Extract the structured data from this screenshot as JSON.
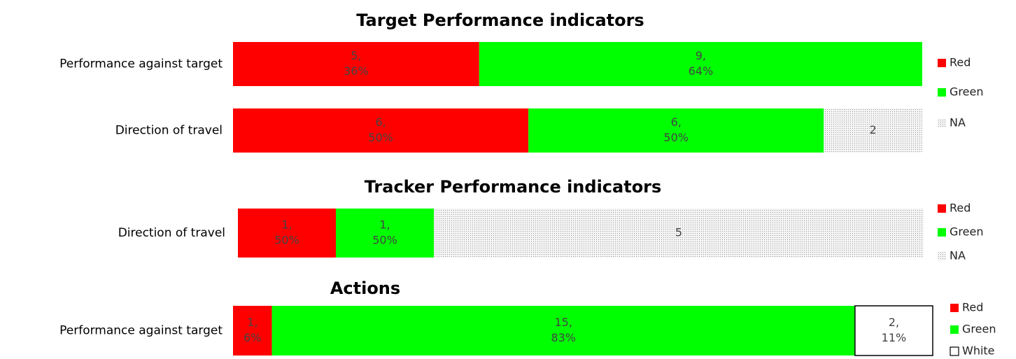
{
  "chart_data": [
    {
      "type": "bar",
      "orientation": "horizontal",
      "stacked": true,
      "title": "Target Performance indicators",
      "categories": [
        "Performance against target",
        "Direction of travel"
      ],
      "series": [
        {
          "name": "Red",
          "color": "#ff0000",
          "values": [
            5,
            6
          ],
          "value_labels": [
            [
              "5,",
              "36%"
            ],
            [
              "6,",
              "50%"
            ]
          ]
        },
        {
          "name": "Green",
          "color": "#00ff00",
          "values": [
            9,
            6
          ],
          "value_labels": [
            [
              "9,",
              "64%"
            ],
            [
              "6,",
              "50%"
            ]
          ]
        },
        {
          "name": "NA",
          "color": "dotted",
          "values": [
            null,
            2
          ],
          "value_labels": [
            null,
            [
              "2"
            ]
          ]
        }
      ],
      "legend": "right"
    },
    {
      "type": "bar",
      "orientation": "horizontal",
      "stacked": true,
      "title": "Tracker Performance indicators",
      "categories": [
        "Direction of travel"
      ],
      "series": [
        {
          "name": "Red",
          "color": "#ff0000",
          "values": [
            1
          ],
          "value_labels": [
            [
              "1,",
              "50%"
            ]
          ]
        },
        {
          "name": "Green",
          "color": "#00ff00",
          "values": [
            1
          ],
          "value_labels": [
            [
              "1,",
              "50%"
            ]
          ]
        },
        {
          "name": "NA",
          "color": "dotted",
          "values": [
            5
          ],
          "value_labels": [
            [
              "5"
            ]
          ]
        }
      ],
      "legend": "right"
    },
    {
      "type": "bar",
      "orientation": "horizontal",
      "stacked": true,
      "title": "Actions",
      "categories": [
        "Performance against target"
      ],
      "series": [
        {
          "name": "Red",
          "color": "#ff0000",
          "values": [
            1
          ],
          "value_labels": [
            [
              "1,",
              "6%"
            ]
          ]
        },
        {
          "name": "Green",
          "color": "#00ff00",
          "values": [
            15
          ],
          "value_labels": [
            [
              "15,",
              "83%"
            ]
          ]
        },
        {
          "name": "White",
          "color": "#ffffff",
          "values": [
            2
          ],
          "value_labels": [
            [
              "2,",
              "11%"
            ]
          ]
        }
      ],
      "legend": "right"
    }
  ]
}
